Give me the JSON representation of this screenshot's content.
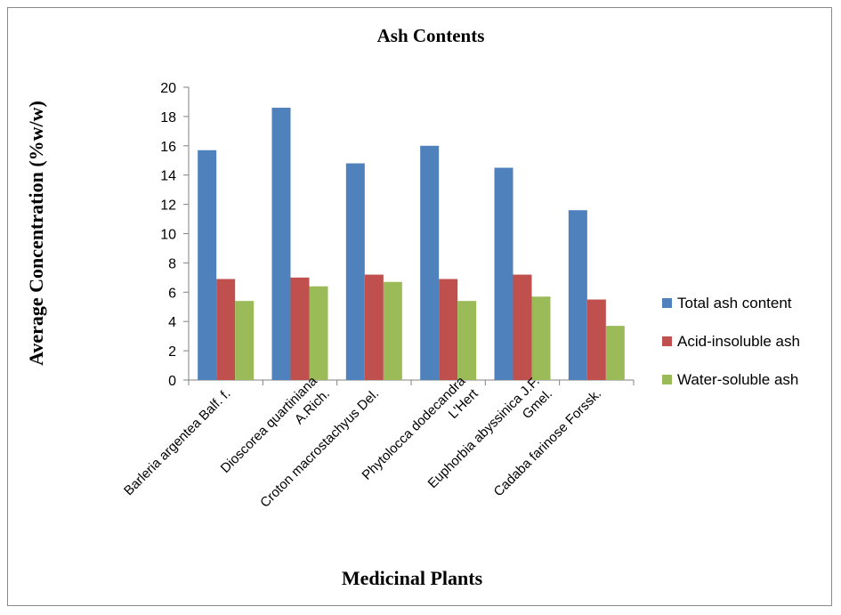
{
  "chart_data": {
    "type": "bar",
    "title": "Ash Contents",
    "xlabel": "Medicinal Plants",
    "ylabel": "Average Concentration (%w/w)",
    "ylim": [
      0,
      20
    ],
    "yticks": [
      "0",
      "2",
      "4",
      "6",
      "8",
      "10",
      "12",
      "14",
      "16",
      "18",
      "20"
    ],
    "categories": [
      [
        "Barleria argentea Balf. f."
      ],
      [
        "Dioscorea quartiniana",
        "A.Rich."
      ],
      [
        "Croton macrostachyus Del."
      ],
      [
        "Phytolocca dodecandra",
        "L'Hert"
      ],
      [
        "Euphorbia abyssinica J.F.",
        "Gmel."
      ],
      [
        "Cadaba farinose Forssk."
      ]
    ],
    "series": [
      {
        "name": "Total ash content",
        "color": "#4f81bd",
        "values": [
          15.7,
          18.6,
          14.8,
          16.0,
          14.5,
          11.6
        ]
      },
      {
        "name": "Acid-insoluble ash",
        "color": "#c0504d",
        "values": [
          6.9,
          7.0,
          7.2,
          6.9,
          7.2,
          5.5
        ]
      },
      {
        "name": "Water-soluble ash",
        "color": "#9bbb59",
        "values": [
          5.4,
          6.4,
          6.7,
          5.4,
          5.7,
          3.7
        ]
      }
    ],
    "grid": false,
    "legend_position": "right"
  }
}
